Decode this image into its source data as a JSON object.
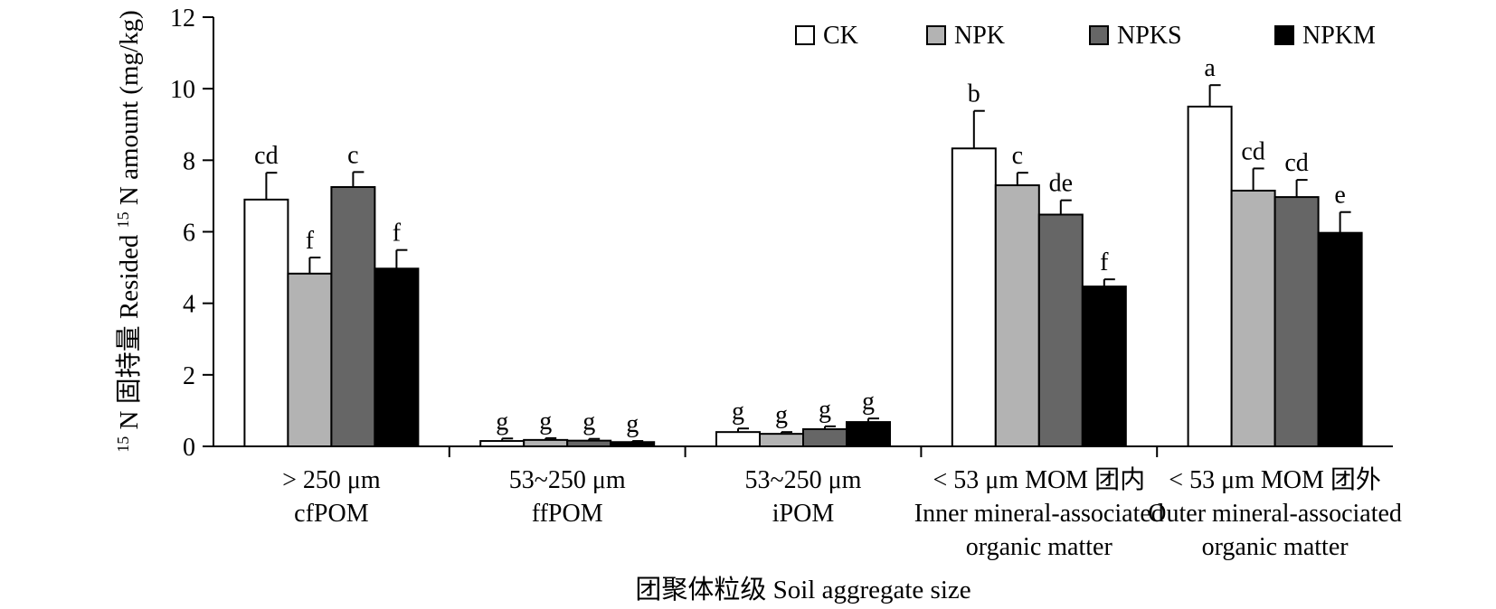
{
  "chart_data": {
    "type": "bar",
    "title": "",
    "xlabel": "团聚体粒级 Soil aggregate size",
    "ylabel_prefix_sup": "15",
    "ylabel_mid": "N 固持量 Resided ",
    "ylabel_mid_sup": "15",
    "ylabel_suffix": "N amount (mg/kg)",
    "ylim": [
      0,
      12
    ],
    "yticks": [
      "0",
      "2",
      "4",
      "6",
      "8",
      "10",
      "12"
    ],
    "categories": [
      {
        "lines": [
          "> 250 μm",
          "cfPOM"
        ]
      },
      {
        "lines": [
          "53~250 μm",
          "ffPOM"
        ]
      },
      {
        "lines": [
          "53~250 μm",
          "iPOM"
        ]
      },
      {
        "lines": [
          "< 53 μm MOM 团内",
          "Inner mineral-associated",
          "organic matter"
        ]
      },
      {
        "lines": [
          "< 53 μm MOM 团外",
          "Outer mineral-associated",
          "organic matter"
        ]
      }
    ],
    "series": [
      {
        "name": "CK",
        "color": "#ffffff",
        "values": [
          6.9,
          0.15,
          0.4,
          8.33,
          9.5
        ],
        "errors": [
          0.75,
          0.07,
          0.1,
          1.05,
          0.6
        ],
        "letters": [
          "cd",
          "g",
          "g",
          "b",
          "a"
        ]
      },
      {
        "name": "NPK",
        "color": "#b3b3b3",
        "values": [
          4.83,
          0.18,
          0.35,
          7.3,
          7.15
        ],
        "errors": [
          0.45,
          0.05,
          0.05,
          0.35,
          0.62
        ],
        "letters": [
          "f",
          "g",
          "g",
          "c",
          "cd"
        ]
      },
      {
        "name": "NPKS",
        "color": "#666666",
        "values": [
          7.25,
          0.16,
          0.48,
          6.48,
          6.97
        ],
        "errors": [
          0.42,
          0.05,
          0.08,
          0.4,
          0.48
        ],
        "letters": [
          "c",
          "g",
          "g",
          "de",
          "cd"
        ]
      },
      {
        "name": "NPKM",
        "color": "#000000",
        "values": [
          4.97,
          0.12,
          0.68,
          4.47,
          5.97
        ],
        "errors": [
          0.52,
          0.03,
          0.1,
          0.2,
          0.58
        ],
        "letters": [
          "f",
          "g",
          "g",
          "f",
          "e"
        ]
      }
    ],
    "legend_position": "top-right",
    "grid": false
  }
}
